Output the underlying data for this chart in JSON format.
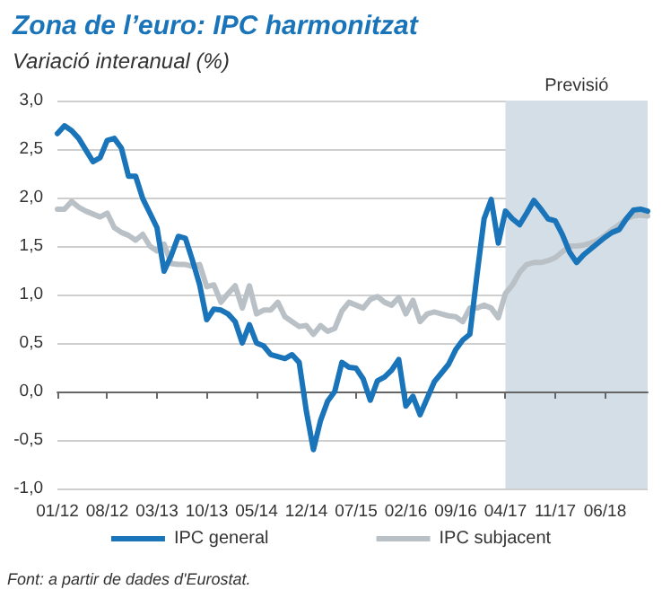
{
  "chart_data": {
    "type": "line",
    "title": "Zona de l’euro: IPC harmonitzat",
    "subtitle": "Variació interanual (%)",
    "x": [
      "2012-01",
      "2012-02",
      "2012-03",
      "2012-04",
      "2012-05",
      "2012-06",
      "2012-07",
      "2012-08",
      "2012-09",
      "2012-10",
      "2012-11",
      "2012-12",
      "2013-01",
      "2013-02",
      "2013-03",
      "2013-04",
      "2013-05",
      "2013-06",
      "2013-07",
      "2013-08",
      "2013-09",
      "2013-10",
      "2013-11",
      "2013-12",
      "2014-01",
      "2014-02",
      "2014-03",
      "2014-04",
      "2014-05",
      "2014-06",
      "2014-07",
      "2014-08",
      "2014-09",
      "2014-10",
      "2014-11",
      "2014-12",
      "2015-01",
      "2015-02",
      "2015-03",
      "2015-04",
      "2015-05",
      "2015-06",
      "2015-07",
      "2015-08",
      "2015-09",
      "2015-10",
      "2015-11",
      "2015-12",
      "2016-01",
      "2016-02",
      "2016-03",
      "2016-04",
      "2016-05",
      "2016-06",
      "2016-07",
      "2016-08",
      "2016-09",
      "2016-10",
      "2016-11",
      "2016-12",
      "2017-01",
      "2017-02",
      "2017-03",
      "2017-04",
      "2017-05",
      "2017-06",
      "2017-07",
      "2017-08",
      "2017-09",
      "2017-10",
      "2017-11",
      "2017-12",
      "2018-01",
      "2018-02",
      "2018-03",
      "2018-04",
      "2018-05",
      "2018-06",
      "2018-07",
      "2018-08",
      "2018-09",
      "2018-10",
      "2018-11",
      "2018-12"
    ],
    "series": [
      {
        "name": "IPC general",
        "color": "#1a74b9",
        "values": [
          2.66,
          2.74,
          2.69,
          2.61,
          2.49,
          2.37,
          2.41,
          2.59,
          2.61,
          2.51,
          2.22,
          2.22,
          1.99,
          1.84,
          1.69,
          1.24,
          1.4,
          1.6,
          1.58,
          1.35,
          1.1,
          0.74,
          0.85,
          0.84,
          0.8,
          0.72,
          0.5,
          0.69,
          0.5,
          0.47,
          0.38,
          0.36,
          0.34,
          0.38,
          0.3,
          -0.2,
          -0.6,
          -0.3,
          -0.1,
          0.0,
          0.3,
          0.25,
          0.24,
          0.13,
          -0.09,
          0.11,
          0.15,
          0.22,
          0.33,
          -0.15,
          -0.05,
          -0.24,
          -0.07,
          0.1,
          0.19,
          0.28,
          0.43,
          0.53,
          0.59,
          1.2,
          1.78,
          1.98,
          1.53,
          1.86,
          1.78,
          1.72,
          1.84,
          1.97,
          1.88,
          1.78,
          1.76,
          1.62,
          1.44,
          1.33,
          1.41,
          1.47,
          1.53,
          1.59,
          1.64,
          1.67,
          1.78,
          1.87,
          1.88,
          1.86
        ]
      },
      {
        "name": "IPC subjacent",
        "color": "#b9c1c7",
        "values": [
          1.88,
          1.88,
          1.96,
          1.9,
          1.86,
          1.83,
          1.8,
          1.84,
          1.69,
          1.64,
          1.61,
          1.56,
          1.62,
          1.5,
          1.45,
          1.52,
          1.32,
          1.31,
          1.31,
          1.29,
          1.31,
          1.08,
          1.1,
          0.92,
          1.01,
          1.09,
          0.86,
          1.09,
          0.8,
          0.84,
          0.84,
          0.92,
          0.77,
          0.72,
          0.67,
          0.68,
          0.59,
          0.68,
          0.62,
          0.65,
          0.83,
          0.92,
          0.89,
          0.86,
          0.95,
          0.98,
          0.92,
          0.89,
          0.97,
          0.8,
          0.94,
          0.72,
          0.8,
          0.82,
          0.8,
          0.78,
          0.77,
          0.72,
          0.86,
          0.86,
          0.89,
          0.86,
          0.76,
          1.01,
          1.1,
          1.23,
          1.31,
          1.33,
          1.33,
          1.35,
          1.38,
          1.44,
          1.5,
          1.5,
          1.51,
          1.53,
          1.56,
          1.61,
          1.67,
          1.72,
          1.78,
          1.81,
          1.82,
          1.81
        ]
      }
    ],
    "xlim": [
      "2012-01",
      "2018-12"
    ],
    "xticks": [
      {
        "value": "2012-01",
        "label": "01/12"
      },
      {
        "value": "2012-08",
        "label": "08/12"
      },
      {
        "value": "2013-03",
        "label": "03/13"
      },
      {
        "value": "2013-10",
        "label": "10/13"
      },
      {
        "value": "2014-05",
        "label": "05/14"
      },
      {
        "value": "2014-12",
        "label": "12/14"
      },
      {
        "value": "2015-07",
        "label": "07/15"
      },
      {
        "value": "2016-02",
        "label": "02/16"
      },
      {
        "value": "2016-09",
        "label": "09/16"
      },
      {
        "value": "2017-04",
        "label": "04/17"
      },
      {
        "value": "2017-11",
        "label": "11/17"
      },
      {
        "value": "2018-06",
        "label": "06/18"
      }
    ],
    "ylim": [
      -1,
      3
    ],
    "yticks": [
      {
        "value": -1,
        "label": "-1,0"
      },
      {
        "value": -0.5,
        "label": "-0,5"
      },
      {
        "value": 0,
        "label": "0,0"
      },
      {
        "value": 0.5,
        "label": "0,5"
      },
      {
        "value": 1,
        "label": "1,0"
      },
      {
        "value": 1.5,
        "label": "1,5"
      },
      {
        "value": 2,
        "label": "2,0"
      },
      {
        "value": 2.5,
        "label": "2,5"
      },
      {
        "value": 3,
        "label": "3,0"
      }
    ],
    "grid": "y",
    "legend": "bottom",
    "marker": "none",
    "line_style": "solid",
    "bands": [
      {
        "axis": "x",
        "from": "2017-04",
        "to": "2018-12",
        "label": "Previsió",
        "color": "#d3dee7"
      }
    ],
    "annotations": [
      "Font: a partir de dades d'Eurostat."
    ]
  }
}
